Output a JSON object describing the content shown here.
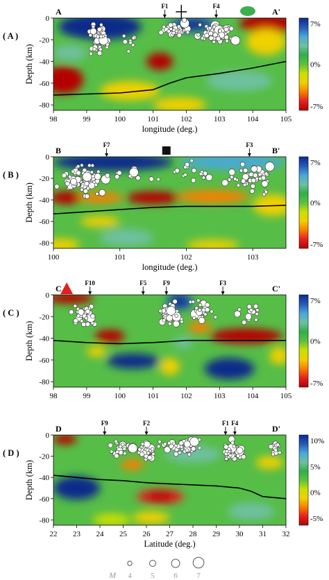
{
  "figure": {
    "ylabel": "Depth (km)",
    "magnitude_legend": {
      "label": "M",
      "values": [
        "4",
        "5",
        "6",
        "7"
      ]
    }
  },
  "colors": {
    "colorbar_stops": [
      "#b40000",
      "#e82020",
      "#f88000",
      "#f0d000",
      "#c8e000",
      "#5cc040",
      "#30b048",
      "#70c0a0",
      "#48a8d8",
      "#2858b8",
      "#0a2c8a"
    ],
    "boundary_line": "#000000",
    "event_fill": "#ffffff",
    "event_stroke": "#333333",
    "volcano": "#e02020",
    "station": "#111111",
    "lake": "#3cb050"
  },
  "chart_data": [
    {
      "type": "heatmap",
      "panel_label": "( A )",
      "start_label": "A",
      "end_label": "A'",
      "xlabel": "longitude (deg.)",
      "ylabel": "Depth (km)",
      "xlim": [
        98,
        105
      ],
      "ylim": [
        -85,
        0
      ],
      "xticks": [
        "98",
        "99",
        "100",
        "101",
        "102",
        "103",
        "104",
        "105"
      ],
      "yticks": [
        "0",
        "-20",
        "-40",
        "-60",
        "-80"
      ],
      "colorbar_ticks": [
        "7%",
        "0%",
        "-7%"
      ],
      "faults": [
        {
          "name": "F1",
          "x": 101.35
        },
        {
          "name": "F4",
          "x": 102.9
        }
      ],
      "markers": [
        {
          "kind": "cross",
          "x": 101.85
        },
        {
          "kind": "ellipse",
          "x": 103.85
        }
      ],
      "boundary": {
        "x": [
          98,
          99,
          100,
          101,
          101.5,
          102,
          103,
          104,
          105
        ],
        "y": [
          -71,
          -70,
          -69,
          -66,
          -60,
          -55,
          -51,
          -46,
          -40
        ]
      },
      "anomalies": [
        {
          "x": 99.4,
          "y": -8,
          "rx": 1.25,
          "ry": 12,
          "v": 1.0
        },
        {
          "x": 102.2,
          "y": -6,
          "rx": 0.7,
          "ry": 7,
          "v": 0.75
        },
        {
          "x": 104.5,
          "y": -5,
          "rx": 0.9,
          "ry": 9,
          "v": -0.95
        },
        {
          "x": 101.2,
          "y": -40,
          "rx": 0.4,
          "ry": 8,
          "v": -0.95
        },
        {
          "x": 98.3,
          "y": -57,
          "rx": 0.6,
          "ry": 13,
          "v": -0.95
        },
        {
          "x": 104.4,
          "y": -22,
          "rx": 0.6,
          "ry": 12,
          "v": -0.45
        },
        {
          "x": 100.3,
          "y": -67,
          "rx": 0.9,
          "ry": 9,
          "v": -0.35
        },
        {
          "x": 103.6,
          "y": -58,
          "rx": 1.0,
          "ry": 9,
          "v": 0.35
        },
        {
          "x": 101.8,
          "y": -80,
          "rx": 0.8,
          "ry": 7,
          "v": -0.4
        },
        {
          "x": 98.5,
          "y": -32,
          "rx": 0.5,
          "ry": 7,
          "v": 0.4
        }
      ]
    },
    {
      "type": "heatmap",
      "panel_label": "( B )",
      "start_label": "B",
      "end_label": "B'",
      "xlabel": "longitude (deg.)",
      "ylabel": "Depth (km)",
      "xlim": [
        100,
        103.5
      ],
      "ylim": [
        -85,
        0
      ],
      "xticks": [
        "100",
        "101",
        "102",
        "103"
      ],
      "yticks": [
        "0",
        "-20",
        "-40",
        "-60",
        "-80"
      ],
      "colorbar_ticks": [
        "7%",
        "0%",
        "-7%"
      ],
      "faults": [
        {
          "name": "F7",
          "x": 100.8
        },
        {
          "name": "F3",
          "x": 102.95
        }
      ],
      "markers": [
        {
          "kind": "square",
          "x": 101.7
        }
      ],
      "boundary": {
        "x": [
          100,
          100.5,
          101,
          101.5,
          102,
          102.5,
          103,
          103.5
        ],
        "y": [
          -53,
          -51,
          -49,
          -47,
          -46,
          -46,
          -46,
          -45
        ]
      },
      "anomalies": [
        {
          "x": 100.9,
          "y": -5,
          "rx": 0.9,
          "ry": 8,
          "v": 0.9
        },
        {
          "x": 102.7,
          "y": -5,
          "rx": 0.8,
          "ry": 7,
          "v": 0.55
        },
        {
          "x": 100.2,
          "y": -38,
          "rx": 0.25,
          "ry": 6,
          "v": -0.9
        },
        {
          "x": 100.7,
          "y": -38,
          "rx": 0.35,
          "ry": 5,
          "v": -0.55
        },
        {
          "x": 101.5,
          "y": -38,
          "rx": 0.4,
          "ry": 6,
          "v": -0.9
        },
        {
          "x": 102.4,
          "y": -37,
          "rx": 0.55,
          "ry": 6,
          "v": -0.65
        },
        {
          "x": 103.3,
          "y": -45,
          "rx": 0.3,
          "ry": 10,
          "v": -0.45
        },
        {
          "x": 100.7,
          "y": -60,
          "rx": 0.3,
          "ry": 5,
          "v": -0.4
        },
        {
          "x": 100.1,
          "y": -82,
          "rx": 0.3,
          "ry": 6,
          "v": -0.45
        },
        {
          "x": 102.4,
          "y": -82,
          "rx": 0.4,
          "ry": 5,
          "v": -0.35
        },
        {
          "x": 101.1,
          "y": -75,
          "rx": 0.4,
          "ry": 8,
          "v": 0.4
        }
      ]
    },
    {
      "type": "heatmap",
      "panel_label": "( C )",
      "start_label": "C",
      "end_label": "C'",
      "xlabel": "",
      "ylabel": "Depth (km)",
      "xlim": [
        98,
        105
      ],
      "ylim": [
        -85,
        0
      ],
      "xticks": [
        "98",
        "99",
        "100",
        "101",
        "102",
        "103",
        "104",
        "105"
      ],
      "yticks": [
        "0",
        "-20",
        "-40",
        "-60",
        "-80"
      ],
      "colorbar_ticks": [
        "7%",
        "0%",
        "-7%"
      ],
      "faults": [
        {
          "name": "F10",
          "x": 99.1
        },
        {
          "name": "F5",
          "x": 100.7
        },
        {
          "name": "F9",
          "x": 101.4
        },
        {
          "name": "F3",
          "x": 103.1
        }
      ],
      "markers": [
        {
          "kind": "triangle",
          "x": 98.4
        }
      ],
      "boundary": {
        "x": [
          98,
          99,
          100,
          101,
          101.5,
          102,
          103,
          104,
          105
        ],
        "y": [
          -42,
          -44,
          -45,
          -44,
          -43,
          -42,
          -42,
          -42,
          -42
        ]
      },
      "anomalies": [
        {
          "x": 98.5,
          "y": -3,
          "rx": 0.7,
          "ry": 5,
          "v": -0.95
        },
        {
          "x": 101.8,
          "y": -6,
          "rx": 0.4,
          "ry": 8,
          "v": 0.85
        },
        {
          "x": 99.7,
          "y": -38,
          "rx": 0.45,
          "ry": 6,
          "v": -0.9
        },
        {
          "x": 102.4,
          "y": -30,
          "rx": 0.35,
          "ry": 5,
          "v": -0.6
        },
        {
          "x": 103.8,
          "y": -38,
          "rx": 1.1,
          "ry": 7,
          "v": -0.95
        },
        {
          "x": 100.4,
          "y": -61,
          "rx": 0.8,
          "ry": 7,
          "v": 0.95
        },
        {
          "x": 103.3,
          "y": -68,
          "rx": 0.75,
          "ry": 10,
          "v": 0.95
        },
        {
          "x": 101.9,
          "y": -44,
          "rx": 0.3,
          "ry": 5,
          "v": 0.45
        },
        {
          "x": 99.3,
          "y": -52,
          "rx": 0.3,
          "ry": 5,
          "v": -0.45
        },
        {
          "x": 101.5,
          "y": -66,
          "rx": 0.3,
          "ry": 8,
          "v": -0.35
        },
        {
          "x": 104.8,
          "y": -56,
          "rx": 0.3,
          "ry": 8,
          "v": -0.35
        }
      ]
    },
    {
      "type": "heatmap",
      "panel_label": "( D )",
      "start_label": "D",
      "end_label": "D'",
      "xlabel": "Latitude (deg.)",
      "ylabel": "Depth (km)",
      "xlim": [
        22,
        32
      ],
      "ylim": [
        -85,
        0
      ],
      "xticks": [
        "22",
        "23",
        "24",
        "25",
        "26",
        "27",
        "28",
        "29",
        "30",
        "31",
        "32"
      ],
      "yticks": [
        "0",
        "-20",
        "-40",
        "-60",
        "-80"
      ],
      "colorbar_ticks": [
        "10%",
        "5%",
        "0%",
        "-5%"
      ],
      "faults": [
        {
          "name": "F9",
          "x": 24.2
        },
        {
          "name": "F2",
          "x": 26.0
        },
        {
          "name": "F1",
          "x": 29.4
        },
        {
          "name": "F4",
          "x": 29.8
        }
      ],
      "markers": [],
      "boundary": {
        "x": [
          22,
          23,
          24,
          25,
          26,
          27,
          28,
          29,
          30,
          30.5,
          31,
          32
        ],
        "y": [
          -38,
          -40,
          -42,
          -43,
          -45,
          -46,
          -47,
          -48,
          -50,
          -53,
          -58,
          -60
        ]
      },
      "anomalies": [
        {
          "x": 23.0,
          "y": -50,
          "rx": 1.0,
          "ry": 11,
          "v": 0.9
        },
        {
          "x": 22.5,
          "y": -4,
          "rx": 0.5,
          "ry": 5,
          "v": -0.9
        },
        {
          "x": 26.6,
          "y": -58,
          "rx": 1.0,
          "ry": 7,
          "v": -0.75
        },
        {
          "x": 26.2,
          "y": -78,
          "rx": 0.8,
          "ry": 6,
          "v": -0.5
        },
        {
          "x": 25.4,
          "y": -28,
          "rx": 0.5,
          "ry": 5,
          "v": -0.55
        },
        {
          "x": 31.3,
          "y": -26,
          "rx": 0.6,
          "ry": 6,
          "v": -0.45
        },
        {
          "x": 28.0,
          "y": -18,
          "rx": 1.2,
          "ry": 8,
          "v": 0.35
        },
        {
          "x": 24.5,
          "y": -80,
          "rx": 0.8,
          "ry": 6,
          "v": -0.3
        },
        {
          "x": 30.5,
          "y": -72,
          "rx": 1.0,
          "ry": 8,
          "v": 0.3
        }
      ]
    }
  ]
}
